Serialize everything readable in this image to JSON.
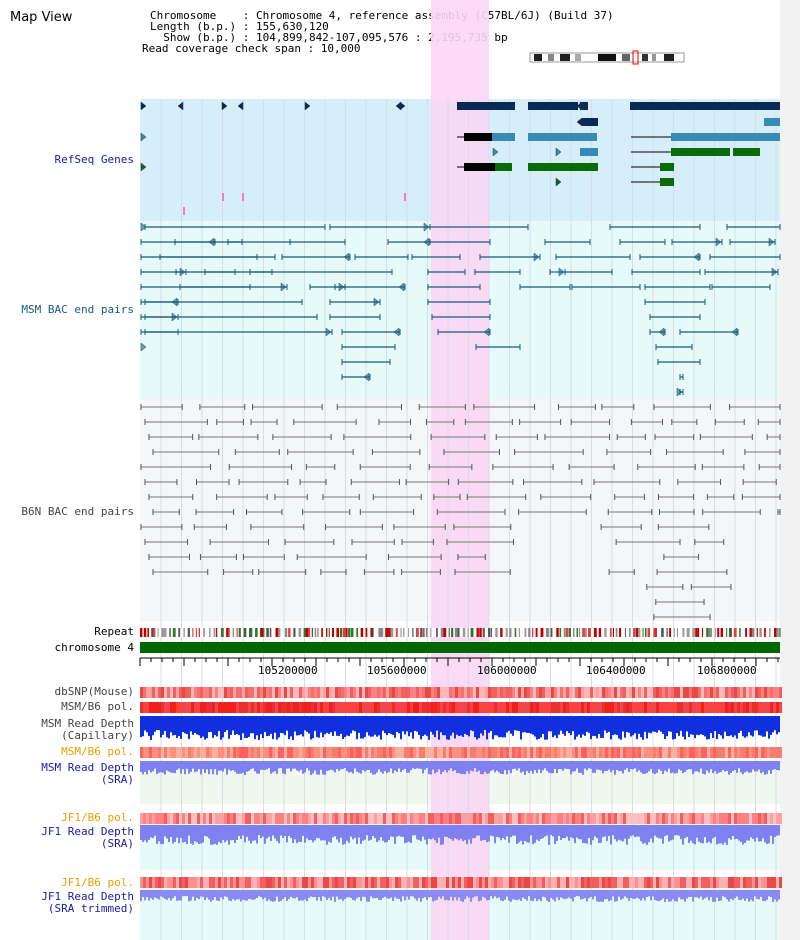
{
  "page": {
    "title": "Map View"
  },
  "info": {
    "chromosome_line": "Chromosome    : Chromosome 4, reference assembly (C57BL/6J) (Build 37)",
    "length_line": "Length (b.p.) : 155,630,120",
    "show_line": "  Show (b.p.) : 104,899,842-107,095,576 : 2,195,735 bp",
    "coverage_line": "Read coverage check span : 10,000"
  },
  "tracks": {
    "refseq": "RefSeq Genes",
    "msm_bac": "MSM BAC end pairs",
    "b6n_bac": "B6N BAC end pairs",
    "repeat": "Repeat",
    "chrom": "chromosome 4",
    "dbsnp": "dbSNP(Mouse)",
    "msm_b6_pol_1": "MSM/B6 pol.",
    "msm_read_depth_cap": "MSM Read Depth\n(Capillary)",
    "msm_b6_pol_2": "MSM/B6 pol.",
    "msm_read_depth_sra": "MSM Read Depth\n(SRA)",
    "jf1_b6_pol_1": "JF1/B6 pol.",
    "jf1_read_depth_sra": "JF1 Read Depth\n(SRA)",
    "jf1_b6_pol_2": "JF1/B6 pol.",
    "jf1_read_depth_trim": "JF1 Read Depth\n(SRA trimmed)"
  },
  "axis": {
    "ticks": [
      "105200000",
      "105600000",
      "106000000",
      "106400000",
      "106800000"
    ]
  },
  "colors": {
    "label_blue": "#1a1aaa",
    "label_teal": "#1a5a7a",
    "label_gray": "#444444",
    "label_orange": "#e8a000",
    "highlight": "#f9d6f3",
    "refseq_bg": "#d6eef9",
    "msm_bg": "#e6fafa",
    "b6n_bg": "#f4f6f8",
    "chrom_green": "#006600"
  }
}
